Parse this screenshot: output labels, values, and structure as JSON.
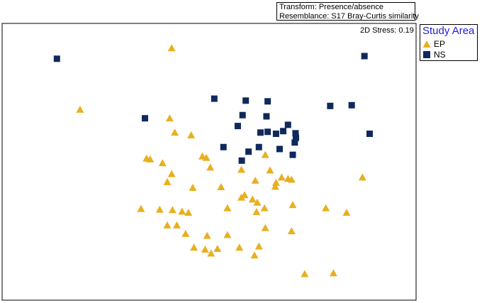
{
  "info": {
    "transform": "Transform: Presence/absence",
    "resemblance": "Resemblance: S17 Bray-Curtis similarity"
  },
  "stress_label": "2D Stress: 0.19",
  "legend": {
    "title": "Study Area",
    "items": [
      {
        "label": "EP",
        "symbol": "triangle-icon",
        "color": "#e8b020"
      },
      {
        "label": "NS",
        "symbol": "square-icon",
        "color": "#0e2a5c"
      }
    ]
  },
  "chart_data": {
    "type": "scatter",
    "title": "",
    "xlabel": "",
    "ylabel": "",
    "xlim": [
      0,
      100
    ],
    "ylim": [
      0,
      100
    ],
    "grid": false,
    "legend_position": "right",
    "series": [
      {
        "name": "EP",
        "marker": "triangle",
        "color": "#e8b020",
        "points": [
          [
            40.6,
            98.3
          ],
          [
            17.6,
            72.9
          ],
          [
            40.1,
            69.3
          ],
          [
            41.4,
            63.4
          ],
          [
            45.5,
            62.3
          ],
          [
            34.3,
            52.7
          ],
          [
            35.2,
            52.4
          ],
          [
            38.3,
            50.8
          ],
          [
            48.3,
            53.6
          ],
          [
            49.3,
            53.0
          ],
          [
            64.1,
            54.2
          ],
          [
            50.3,
            49.0
          ],
          [
            40.6,
            46.3
          ],
          [
            39.5,
            43.0
          ],
          [
            45.9,
            40.6
          ],
          [
            58.1,
            48.1
          ],
          [
            65.3,
            47.8
          ],
          [
            68.2,
            44.9
          ],
          [
            69.8,
            44.3
          ],
          [
            66.8,
            42.7
          ],
          [
            66.6,
            41.1
          ],
          [
            70.7,
            44.0
          ],
          [
            88.5,
            44.9
          ],
          [
            61.6,
            43.6
          ],
          [
            53.0,
            40.9
          ],
          [
            58.9,
            37.6
          ],
          [
            58.1,
            36.6
          ],
          [
            60.9,
            35.8
          ],
          [
            62.1,
            34.5
          ],
          [
            54.6,
            32.2
          ],
          [
            63.9,
            32.2
          ],
          [
            61.9,
            30.6
          ],
          [
            71.0,
            33.5
          ],
          [
            79.3,
            32.2
          ],
          [
            32.9,
            31.9
          ],
          [
            37.6,
            31.6
          ],
          [
            40.8,
            31.4
          ],
          [
            43.2,
            30.8
          ],
          [
            44.8,
            30.3
          ],
          [
            84.5,
            30.3
          ],
          [
            39.5,
            25.1
          ],
          [
            41.9,
            25.1
          ],
          [
            64.1,
            24.0
          ],
          [
            44.1,
            21.6
          ],
          [
            49.5,
            20.8
          ],
          [
            54.6,
            21.1
          ],
          [
            70.7,
            22.7
          ],
          [
            46.2,
            15.9
          ],
          [
            49.0,
            15.1
          ],
          [
            52.1,
            15.4
          ],
          [
            57.6,
            15.9
          ],
          [
            62.5,
            16.4
          ],
          [
            50.5,
            13.5
          ],
          [
            61.4,
            12.7
          ],
          [
            74.0,
            5.0
          ],
          [
            81.2,
            5.3
          ]
        ]
      },
      {
        "name": "NS",
        "marker": "square",
        "color": "#0e2a5c",
        "points": [
          [
            11.8,
            93.9
          ],
          [
            89.0,
            95.0
          ],
          [
            51.3,
            77.4
          ],
          [
            59.2,
            76.6
          ],
          [
            64.7,
            76.3
          ],
          [
            80.4,
            74.4
          ],
          [
            85.8,
            74.7
          ],
          [
            33.9,
            69.3
          ],
          [
            58.4,
            70.6
          ],
          [
            64.4,
            70.1
          ],
          [
            57.2,
            66.1
          ],
          [
            69.8,
            66.6
          ],
          [
            62.9,
            63.4
          ],
          [
            64.7,
            63.7
          ],
          [
            66.8,
            62.9
          ],
          [
            68.6,
            64.0
          ],
          [
            71.7,
            63.1
          ],
          [
            71.8,
            61.2
          ],
          [
            90.3,
            62.9
          ],
          [
            71.5,
            59.3
          ],
          [
            62.5,
            57.4
          ],
          [
            67.7,
            56.6
          ],
          [
            53.6,
            57.4
          ],
          [
            59.9,
            55.5
          ],
          [
            71.0,
            54.2
          ],
          [
            58.2,
            51.8
          ]
        ]
      }
    ]
  }
}
